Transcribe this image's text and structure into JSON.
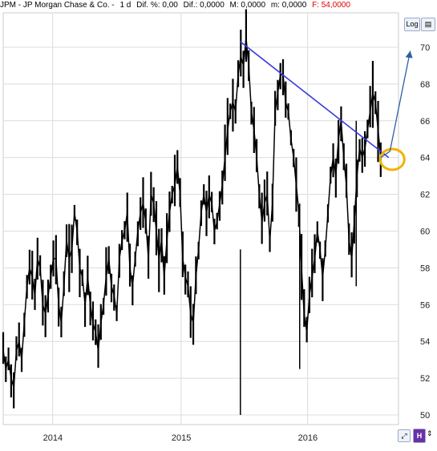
{
  "header": {
    "symbol": "JPM - JP Morgan Chase & Co. -",
    "interval": "1 d",
    "dif_pct": "Dif. %: 0,00",
    "dif": "Dif.: 0,0000",
    "max": "M: 0,0000",
    "min": "m: 0,0000",
    "close": "F: 54,0000"
  },
  "toolbar": {
    "log_label": "Log"
  },
  "colors": {
    "price": "#000000",
    "trendline": "#3b3bdb",
    "arrow": "#2d5fa6",
    "highlight": "#f2b200",
    "close_text": "#e00000"
  },
  "chart_data": {
    "type": "line",
    "title": "",
    "xlabel": "",
    "ylabel": "",
    "x_ticks": [
      "2014",
      "2015",
      "2016"
    ],
    "y_ticks": [
      50,
      52,
      54,
      56,
      58,
      60,
      62,
      64,
      66,
      68,
      70
    ],
    "ylim": [
      50,
      71
    ],
    "grid": true,
    "series": [
      {
        "values": [
          53.5,
          52.5,
          53.0,
          52.0,
          51.5,
          53.5,
          54.0,
          53.0,
          55.0,
          57.0,
          58.0,
          57.5,
          56.5,
          58.5,
          58.0,
          56.0,
          55.5,
          56.5,
          57.5,
          58.5,
          58.5,
          56.0,
          55.0,
          57.0,
          59.5,
          58.5,
          59.0,
          61.0,
          60.0,
          58.0,
          57.5,
          56.0,
          57.5,
          56.0,
          55.0,
          54.5,
          53.5,
          55.0,
          56.0,
          57.5,
          58.5,
          57.0,
          56.5,
          55.5,
          58.5,
          59.5,
          60.0,
          61.0,
          58.0,
          57.0,
          58.5,
          60.0,
          61.0,
          61.5,
          60.5,
          58.5,
          62.0,
          61.5,
          60.0,
          58.5,
          59.5,
          57.5,
          59.5,
          61.0,
          62.0,
          62.5,
          63.5,
          62.0,
          58.5,
          57.5,
          57.0,
          55.5,
          55.0,
          57.5,
          59.0,
          61.0,
          62.0,
          61.0,
          62.0,
          61.5,
          60.0,
          60.5,
          61.5,
          62.5,
          64.0,
          65.5,
          66.5,
          67.0,
          66.5,
          68.5,
          69.5,
          69.0,
          70.5,
          69.0,
          66.5,
          65.5,
          64.0,
          62.0,
          60.5,
          61.5,
          62.0,
          59.5,
          61.5,
          66.5,
          67.5,
          68.5,
          68.5,
          67.0,
          66.5,
          65.0,
          64.0,
          62.5,
          61.0,
          58.0,
          55.5,
          54.5,
          56.5,
          57.5,
          58.5,
          60.0,
          59.0,
          57.5,
          59.0,
          61.0,
          63.0,
          64.0,
          63.0,
          65.0,
          66.0,
          64.0,
          62.5,
          59.5,
          58.5,
          60.5,
          63.0,
          64.5,
          64.0,
          64.5,
          65.5,
          66.5,
          67.5,
          67.0,
          65.5,
          64.0
        ]
      },
      {
        "name": "",
        "values": [
          70.3,
          64.0
        ]
      }
    ],
    "low_spikes": [
      {
        "x": 0.6,
        "value": 50.0
      },
      {
        "x": 0.75,
        "value": 52.5
      },
      {
        "x": 0.893,
        "value": 57.0
      }
    ],
    "annotations": [
      {
        "type": "circle",
        "at": [
          0.964,
          63.9
        ]
      },
      {
        "type": "arrow",
        "to": [
          0.985,
          69.8
        ]
      }
    ],
    "legend": "none"
  }
}
